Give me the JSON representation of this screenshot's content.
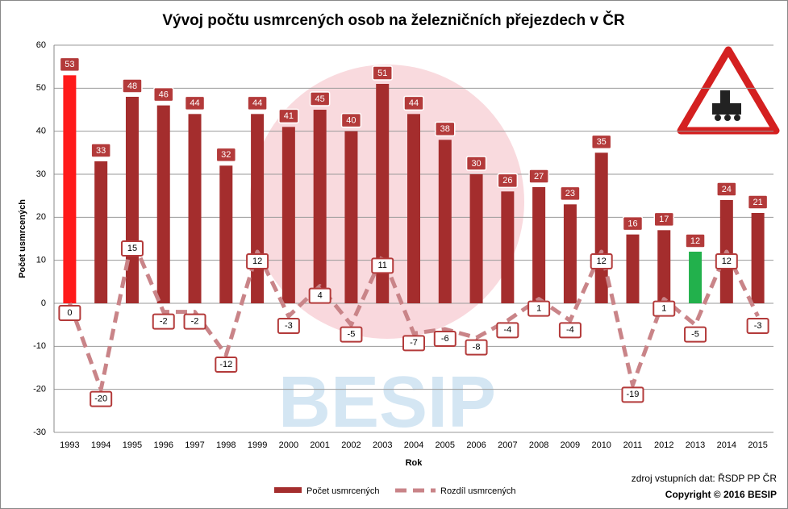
{
  "chart_data": {
    "type": "bar",
    "title": "Vývoj počtu usmrcených osob na železničních přejezdech v ČR",
    "x_label": "Rok",
    "y_label": "Počet usmrcených",
    "categories": [
      "1993",
      "1994",
      "1995",
      "1996",
      "1997",
      "1998",
      "1999",
      "2000",
      "2001",
      "2002",
      "2003",
      "2004",
      "2005",
      "2006",
      "2007",
      "2008",
      "2009",
      "2010",
      "2011",
      "2012",
      "2013",
      "2014",
      "2015"
    ],
    "series": [
      {
        "name": "Počet usmrcených",
        "type": "bar",
        "color": "#a42d2d",
        "colors": [
          "#ff1a1a",
          "#a42d2d",
          "#a42d2d",
          "#a42d2d",
          "#a42d2d",
          "#a42d2d",
          "#a42d2d",
          "#a42d2d",
          "#a42d2d",
          "#a42d2d",
          "#a42d2d",
          "#a42d2d",
          "#a42d2d",
          "#a42d2d",
          "#a42d2d",
          "#a42d2d",
          "#a42d2d",
          "#a42d2d",
          "#a42d2d",
          "#a42d2d",
          "#22b14c",
          "#a42d2d",
          "#a42d2d"
        ],
        "values": [
          53,
          33,
          48,
          46,
          44,
          32,
          44,
          41,
          45,
          40,
          51,
          44,
          38,
          30,
          26,
          27,
          23,
          35,
          16,
          17,
          12,
          24,
          21
        ]
      },
      {
        "name": "Rozdíl usmrcených",
        "type": "line",
        "color": "#c98488",
        "values": [
          0,
          -20,
          15,
          -2,
          -2,
          -12,
          12,
          -3,
          4,
          -5,
          11,
          -7,
          -6,
          -8,
          -4,
          1,
          -4,
          12,
          -19,
          1,
          -5,
          12,
          -3
        ]
      }
    ],
    "ylim": [
      -30,
      60
    ],
    "yticks": [
      -30,
      -20,
      -10,
      0,
      10,
      20,
      30,
      40,
      50,
      60
    ],
    "grid": true,
    "legend": "bottom",
    "source": "zdroj vstupních dat: ŘSDP PP ČR",
    "copyright": "Copyright © 2016 BESIP"
  }
}
